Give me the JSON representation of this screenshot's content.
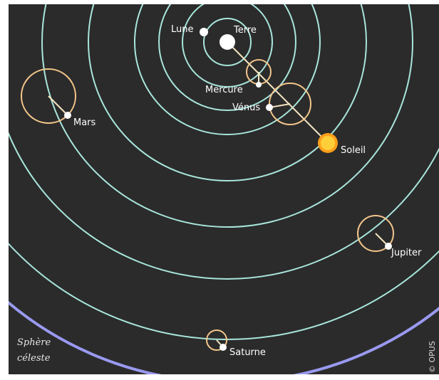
{
  "diagram": {
    "colors": {
      "background": "#2b2b2b",
      "orbit": "#a8e6dc",
      "epicycle": "#f3c58a",
      "celestial_sphere": "#9a9af2",
      "body": "#ffffff",
      "sun": "#ffcf3a",
      "sun_ring": "#ff9f1a"
    },
    "labels": {
      "earth": "Terre",
      "moon": "Lune",
      "mercury": "Mercure",
      "venus": "Vénus",
      "sun": "Soleil",
      "mars": "Mars",
      "jupiter": "Jupiter",
      "saturn": "Saturne",
      "sphere_line1": "Sphère",
      "sphere_line2": "céleste",
      "copyright": "© OPUS"
    }
  }
}
